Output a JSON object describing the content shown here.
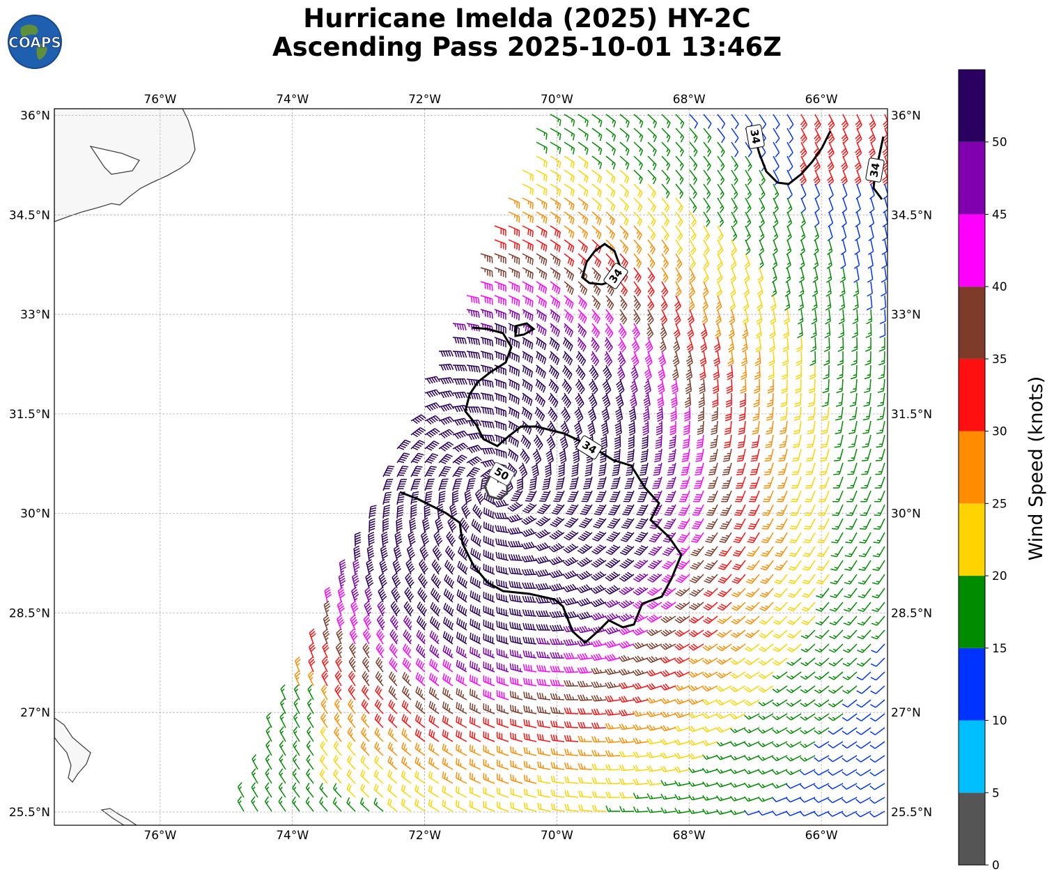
{
  "title": {
    "line1": "Hurricane Imelda (2025) HY-2C",
    "line2": "Ascending Pass 2025-10-01 13:46Z"
  },
  "logo": {
    "text": "COAPS",
    "icon": "globe-icon"
  },
  "map": {
    "lon_range": [
      -77.6,
      -65.0
    ],
    "lat_range": [
      25.3,
      36.1
    ],
    "gridlines": true,
    "lon_ticks": [
      {
        "value": -76,
        "label": "76°W"
      },
      {
        "value": -74,
        "label": "74°W"
      },
      {
        "value": -72,
        "label": "72°W"
      },
      {
        "value": -70,
        "label": "70°W"
      },
      {
        "value": -68,
        "label": "68°W"
      },
      {
        "value": -66,
        "label": "66°W"
      }
    ],
    "lat_ticks": [
      {
        "value": 36,
        "label": "36°N"
      },
      {
        "value": 34.5,
        "label": "34.5°N"
      },
      {
        "value": 33,
        "label": "33°N"
      },
      {
        "value": 31.5,
        "label": "31.5°N"
      },
      {
        "value": 30,
        "label": "30°N"
      },
      {
        "value": 28.5,
        "label": "28.5°N"
      },
      {
        "value": 27,
        "label": "27°N"
      },
      {
        "value": 25.5,
        "label": "25.5°N"
      }
    ],
    "storm_center": {
      "lon": -70.9,
      "lat": 30.4
    },
    "contours": [
      {
        "level": "34",
        "label": "34"
      },
      {
        "level": "34",
        "label": "34"
      },
      {
        "level": "34",
        "label": "34"
      },
      {
        "level": "34",
        "label": "34"
      },
      {
        "level": "50",
        "label": "50"
      }
    ]
  },
  "colorbar": {
    "title": "Wind Speed (knots)",
    "bins": [
      {
        "min": 0,
        "max": 5,
        "color": "#555555"
      },
      {
        "min": 5,
        "max": 10,
        "color": "#00bfff"
      },
      {
        "min": 10,
        "max": 15,
        "color": "#0033ff"
      },
      {
        "min": 15,
        "max": 20,
        "color": "#008c00"
      },
      {
        "min": 20,
        "max": 25,
        "color": "#ffd300"
      },
      {
        "min": 25,
        "max": 30,
        "color": "#ff8c00"
      },
      {
        "min": 30,
        "max": 35,
        "color": "#ff1010"
      },
      {
        "min": 35,
        "max": 40,
        "color": "#7f3b2a"
      },
      {
        "min": 40,
        "max": 45,
        "color": "#ff00ff"
      },
      {
        "min": 45,
        "max": 50,
        "color": "#8000b0"
      },
      {
        "min": 50,
        "max": 55,
        "color": "#2a0060"
      }
    ],
    "tick_labels": [
      "0",
      "5",
      "10",
      "15",
      "20",
      "25",
      "30",
      "35",
      "40",
      "45",
      "50"
    ]
  }
}
